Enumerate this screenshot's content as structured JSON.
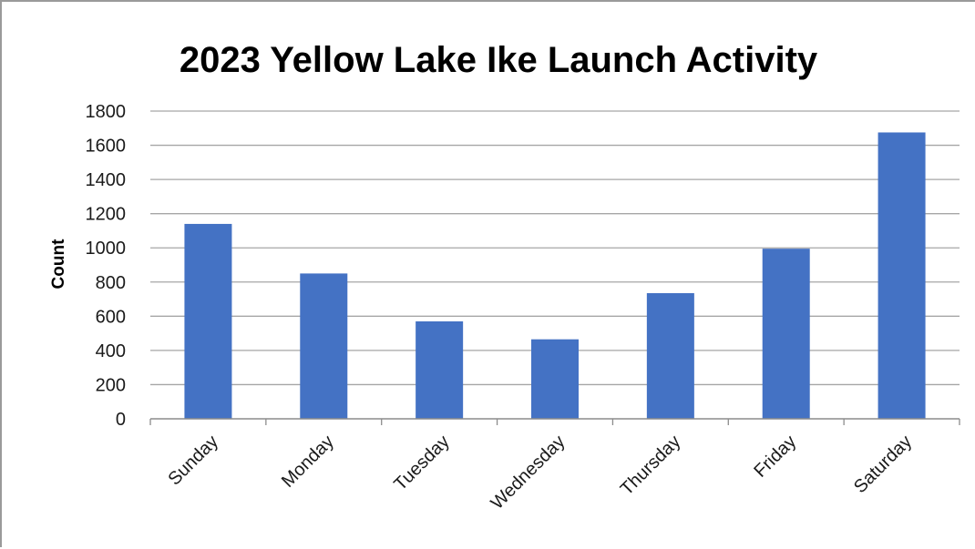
{
  "chart_data": {
    "type": "bar",
    "title": "2023 Yellow Lake Ike Launch Activity",
    "xlabel": "",
    "ylabel": "Count",
    "categories": [
      "Sunday",
      "Monday",
      "Tuesday",
      "Wednesday",
      "Thursday",
      "Friday",
      "Saturday"
    ],
    "values": [
      1140,
      850,
      570,
      465,
      735,
      995,
      1675
    ],
    "ylim": [
      0,
      1800
    ],
    "yticks": [
      "0",
      "200",
      "400",
      "600",
      "800",
      "1000",
      "1200",
      "1400",
      "1600",
      "1800"
    ],
    "grid": true,
    "legend": "none",
    "colors": {
      "bar": "#4472C4",
      "gridline": "#a6a6a6",
      "axis": "#8c8c8c"
    }
  }
}
